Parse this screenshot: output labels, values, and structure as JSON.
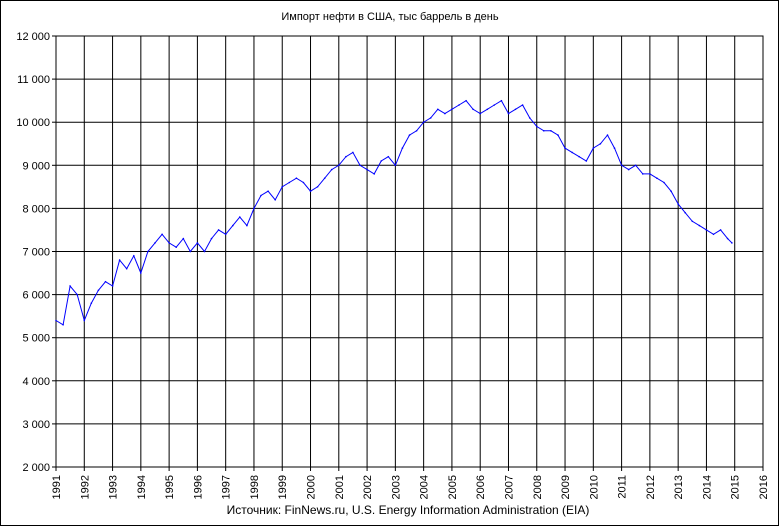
{
  "chart_data": {
    "type": "line",
    "title": "Импорт нефти в США, тыс баррель в день",
    "source": "Источник: FinNews.ru, U.S. Energy Information Administration (EIA)",
    "xlabel": "",
    "ylabel": "",
    "xlim": [
      1991,
      2016
    ],
    "ylim": [
      2000,
      12000
    ],
    "grid": true,
    "legend": "none",
    "x_ticks": [
      "1991",
      "1992",
      "1993",
      "1994",
      "1995",
      "1996",
      "1997",
      "1998",
      "1999",
      "2000",
      "2001",
      "2002",
      "2003",
      "2004",
      "2005",
      "2006",
      "2007",
      "2008",
      "2009",
      "2010",
      "2011",
      "2012",
      "2013",
      "2014",
      "2015",
      "2016"
    ],
    "y_ticks": [
      "2 000",
      "3 000",
      "4 000",
      "5 000",
      "6 000",
      "7 000",
      "8 000",
      "9 000",
      "10 000",
      "11 000",
      "12 000"
    ],
    "series_color": "#0000ff",
    "series": [
      {
        "x": [
          1991.0,
          1991.25,
          1991.5,
          1991.75,
          1992.0,
          1992.25,
          1992.5,
          1992.75,
          1993.0,
          1993.25,
          1993.5,
          1993.75,
          1994.0,
          1994.25,
          1994.5,
          1994.75,
          1995.0,
          1995.25,
          1995.5,
          1995.75,
          1996.0,
          1996.25,
          1996.5,
          1996.75,
          1997.0,
          1997.25,
          1997.5,
          1997.75,
          1998.0,
          1998.25,
          1998.5,
          1998.75,
          1999.0,
          1999.25,
          1999.5,
          1999.75,
          2000.0,
          2000.25,
          2000.5,
          2000.75,
          2001.0,
          2001.25,
          2001.5,
          2001.75,
          2002.0,
          2002.25,
          2002.5,
          2002.75,
          2003.0,
          2003.25,
          2003.5,
          2003.75,
          2004.0,
          2004.25,
          2004.5,
          2004.75,
          2005.0,
          2005.25,
          2005.5,
          2005.75,
          2006.0,
          2006.25,
          2006.5,
          2006.75,
          2007.0,
          2007.25,
          2007.5,
          2007.75,
          2008.0,
          2008.25,
          2008.5,
          2008.75,
          2009.0,
          2009.25,
          2009.5,
          2009.75,
          2010.0,
          2010.25,
          2010.5,
          2010.75,
          2011.0,
          2011.25,
          2011.5,
          2011.75,
          2012.0,
          2012.25,
          2012.5,
          2012.75,
          2013.0,
          2013.25,
          2013.5,
          2013.75,
          2014.0,
          2014.25,
          2014.5,
          2014.75,
          2014.9
        ],
        "values": [
          5400,
          5300,
          6200,
          6000,
          5400,
          5800,
          6100,
          6300,
          6200,
          6800,
          6600,
          6900,
          6500,
          7000,
          7200,
          7400,
          7200,
          7100,
          7300,
          7000,
          7200,
          7000,
          7300,
          7500,
          7400,
          7600,
          7800,
          7600,
          8000,
          8300,
          8400,
          8200,
          8500,
          8600,
          8700,
          8600,
          8400,
          8500,
          8700,
          8900,
          9000,
          9200,
          9300,
          9000,
          8900,
          8800,
          9100,
          9200,
          9000,
          9400,
          9700,
          9800,
          10000,
          10100,
          10300,
          10200,
          10300,
          10400,
          10500,
          10300,
          10200,
          10300,
          10400,
          10500,
          10200,
          10300,
          10400,
          10100,
          9900,
          9800,
          9800,
          9700,
          9400,
          9300,
          9200,
          9100,
          9400,
          9500,
          9700,
          9400,
          9000,
          8900,
          9000,
          8800,
          8800,
          8700,
          8600,
          8400,
          8100,
          7900,
          7700,
          7600,
          7500,
          7400,
          7500,
          7300,
          7200
        ]
      }
    ]
  }
}
